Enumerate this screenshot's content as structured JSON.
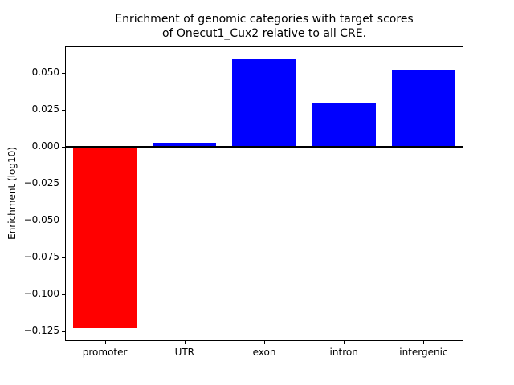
{
  "chart_data": {
    "type": "bar",
    "title": "Enrichment of genomic categories with target scores\nof Onecut1_Cux2 relative to all CRE.",
    "title_line1": "Enrichment of genomic categories with target scores",
    "title_line2": "of Onecut1_Cux2 relative to all CRE.",
    "xlabel": "",
    "ylabel": "Enrichment (log10)",
    "categories": [
      "promoter",
      "UTR",
      "exon",
      "intron",
      "intergenic"
    ],
    "values": [
      -0.123,
      0.003,
      0.06,
      0.03,
      0.052
    ],
    "colors": [
      "#ff0000",
      "#0000ff",
      "#0000ff",
      "#0000ff",
      "#0000ff"
    ],
    "negative_color": "#ff0000",
    "positive_color": "#0000ff",
    "ylim": [
      -0.1315,
      0.0685
    ],
    "yticks": [
      0.05,
      0.025,
      0.0,
      -0.025,
      -0.05,
      -0.075,
      -0.1,
      -0.125
    ],
    "ytick_labels": [
      "0.050",
      "0.025",
      "0.000",
      "−0.025",
      "−0.050",
      "−0.075",
      "−0.100",
      "−0.125"
    ],
    "bar_width_fraction": 0.8,
    "zero_line": true,
    "grid": false,
    "legend": null
  }
}
